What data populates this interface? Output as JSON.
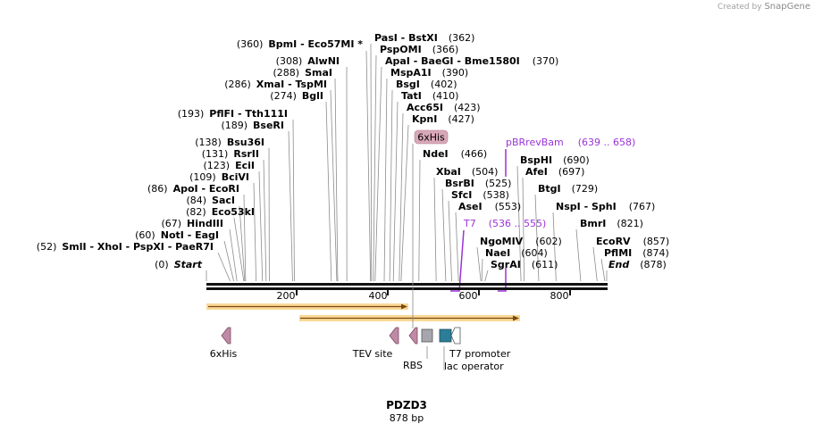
{
  "watermark": {
    "prefix": "Created by",
    "brand": "SnapGene"
  },
  "plasmid": {
    "name": "PDZD3",
    "length": "878 bp"
  },
  "axis": {
    "ticks": [
      "200",
      "400",
      "600",
      "800"
    ]
  },
  "sites": [
    {
      "pos": "(360)",
      "name": "BpmI",
      "extra": " - Eco57MI *"
    },
    {
      "pos": "(308)",
      "name": "AlwNI",
      "extra": ""
    },
    {
      "pos": "(288)",
      "name": "SmaI",
      "extra": ""
    },
    {
      "pos": "(286)",
      "name": "XmaI",
      "extra": " - TspMI"
    },
    {
      "pos": "(274)",
      "name": "BglI",
      "extra": ""
    },
    {
      "pos": "(193)",
      "name": "PflFI",
      "extra": " - Tth111I"
    },
    {
      "pos": "(189)",
      "name": "BseRI",
      "extra": ""
    },
    {
      "pos": "(138)",
      "name": "Bsu36I",
      "extra": ""
    },
    {
      "pos": "(131)",
      "name": "RsrII",
      "extra": ""
    },
    {
      "pos": "(123)",
      "name": "EciI",
      "extra": ""
    },
    {
      "pos": "(109)",
      "name": "BciVI",
      "extra": ""
    },
    {
      "pos": "(86)",
      "name": "ApoI",
      "extra": " - EcoRI"
    },
    {
      "pos": "(84)",
      "name": "SacI",
      "extra": ""
    },
    {
      "pos": "(82)",
      "name": "Eco53kI",
      "extra": ""
    },
    {
      "pos": "(67)",
      "name": "HindIII",
      "extra": ""
    },
    {
      "pos": "(60)",
      "name": "NotI",
      "extra": " - EagI"
    },
    {
      "pos": "(52)",
      "name": "SmlI",
      "extra": " - XhoI  - PspXI  - PaeR7I"
    },
    {
      "pos": "(0)",
      "name": "Start",
      "extra": ""
    },
    {
      "pos": "(362)",
      "name": "PasI",
      "extra": " - BstXI"
    },
    {
      "pos": "(366)",
      "name": "PspOMI",
      "extra": ""
    },
    {
      "pos": "(370)",
      "name": "ApaI",
      "extra": " - BaeGI  - Bme1580I"
    },
    {
      "pos": "(390)",
      "name": "MspA1I",
      "extra": ""
    },
    {
      "pos": "(402)",
      "name": "BsgI",
      "extra": ""
    },
    {
      "pos": "(410)",
      "name": "TatI",
      "extra": ""
    },
    {
      "pos": "(423)",
      "name": "Acc65I",
      "extra": ""
    },
    {
      "pos": "(427)",
      "name": "KpnI",
      "extra": ""
    },
    {
      "pos": "(466)",
      "name": "NdeI",
      "extra": ""
    },
    {
      "pos": "(504)",
      "name": "XbaI",
      "extra": ""
    },
    {
      "pos": "(525)",
      "name": "BsrBI",
      "extra": ""
    },
    {
      "pos": "(538)",
      "name": "SfcI",
      "extra": ""
    },
    {
      "pos": "(553)",
      "name": "AseI",
      "extra": ""
    },
    {
      "pos": "(602)",
      "name": "NgoMIV",
      "extra": ""
    },
    {
      "pos": "(604)",
      "name": "NaeI",
      "extra": ""
    },
    {
      "pos": "(611)",
      "name": "SgrAI",
      "extra": ""
    },
    {
      "pos": "(690)",
      "name": "BspHI",
      "extra": ""
    },
    {
      "pos": "(697)",
      "name": "AfeI",
      "extra": ""
    },
    {
      "pos": "(729)",
      "name": "BtgI",
      "extra": ""
    },
    {
      "pos": "(767)",
      "name": "NspI",
      "extra": " - SphI"
    },
    {
      "pos": "(821)",
      "name": "BmrI",
      "extra": ""
    },
    {
      "pos": "(857)",
      "name": "EcoRV",
      "extra": ""
    },
    {
      "pos": "(874)",
      "name": "PflMI",
      "extra": ""
    },
    {
      "pos": "(878)",
      "name": "End",
      "extra": ""
    }
  ],
  "primers": {
    "pbr": {
      "name": "pBRrevBam",
      "range": "(639 .. 658)"
    },
    "t7": {
      "name": "T7",
      "range": "(536 .. 555)"
    }
  },
  "his_tag_box": "6xHis",
  "features": {
    "his": "6xHis",
    "tev": "TEV site",
    "rbs": "RBS",
    "t7_promoter": "T7 promoter",
    "lac_operator": "lac operator"
  },
  "colors": {
    "orf_fill": "#f5b840",
    "orf_line": "#8a5a10",
    "site_feature": "#c08aa6",
    "promoter_grey": "#a6a6ae",
    "operator_teal": "#2c7d98",
    "primer": "#9a33d6",
    "his_box": "#d9a8b8"
  }
}
